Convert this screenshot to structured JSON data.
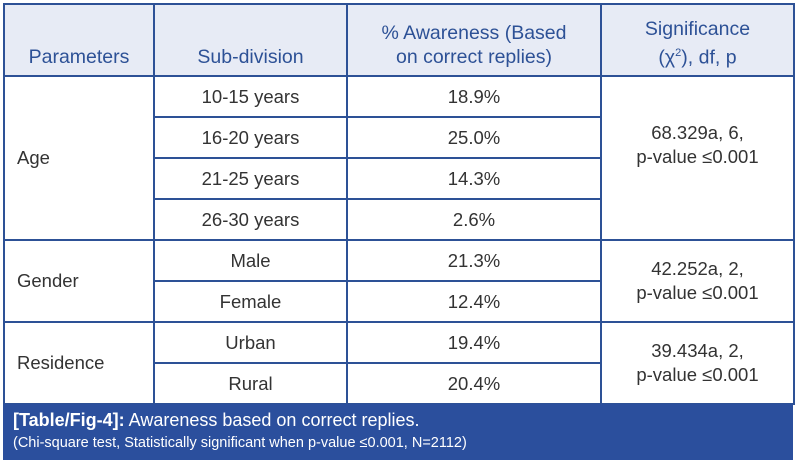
{
  "table": {
    "headers": {
      "parameters": "Parameters",
      "subdivision": "Sub-division",
      "awareness_line1": "% Awareness (Based",
      "awareness_line2": "on correct replies)",
      "significance_line1": "Significance",
      "significance_line2_pre": "(χ",
      "significance_line2_sup": "2",
      "significance_line2_post": "), df, p"
    },
    "groups": [
      {
        "parameter": "Age",
        "significance_line1": "68.329a, 6,",
        "significance_line2": "p-value ≤0.001",
        "rows": [
          {
            "subdivision": "10-15 years",
            "awareness": "18.9%"
          },
          {
            "subdivision": "16-20 years",
            "awareness": "25.0%"
          },
          {
            "subdivision": "21-25 years",
            "awareness": "14.3%"
          },
          {
            "subdivision": "26-30 years",
            "awareness": "2.6%"
          }
        ]
      },
      {
        "parameter": "Gender",
        "significance_line1": "42.252a, 2,",
        "significance_line2": "p-value ≤0.001",
        "rows": [
          {
            "subdivision": "Male",
            "awareness": "21.3%"
          },
          {
            "subdivision": "Female",
            "awareness": "12.4%"
          }
        ]
      },
      {
        "parameter": "Residence",
        "significance_line1": "39.434a, 2,",
        "significance_line2": "p-value ≤0.001",
        "rows": [
          {
            "subdivision": "Urban",
            "awareness": "19.4%"
          },
          {
            "subdivision": "Rural",
            "awareness": "20.4%"
          }
        ]
      }
    ]
  },
  "caption": {
    "label": "[Table/Fig-4]:",
    "title": " Awareness based on correct replies.",
    "note": "(Chi-square test, Statistically significant when p-value ≤0.001, N=2112)"
  },
  "colors": {
    "border": "#2d5196",
    "header_bg": "#e7ebf5",
    "caption_bg": "#2b4f9d"
  }
}
